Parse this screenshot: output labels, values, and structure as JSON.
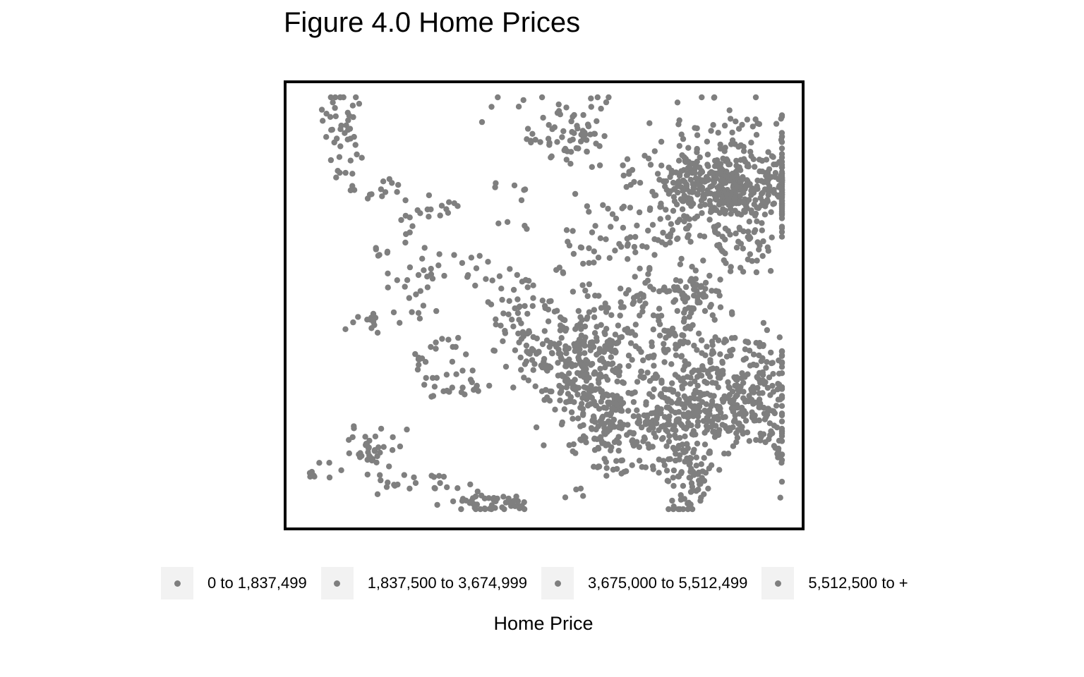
{
  "chart_data": {
    "type": "scatter",
    "title": "Figure 4.0 Home Prices",
    "point_color": "#7f7f7f",
    "frame_color": "#000000",
    "legend": {
      "title": "Home Price",
      "position": "bottom",
      "entries": [
        "0 to 1,837,499",
        "1,837,500 to 3,674,999",
        "3,675,000 to 5,512,499",
        "5,512,500 to +"
      ]
    },
    "axes": "none",
    "grid": false
  }
}
